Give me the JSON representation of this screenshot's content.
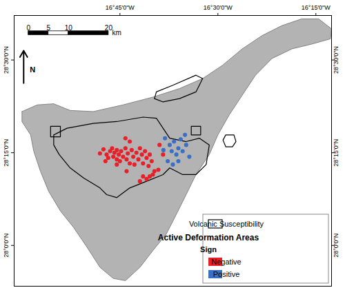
{
  "chart_data": {
    "type": "map",
    "xlim": [
      -17.02,
      -16.21
    ],
    "ylim": [
      27.89,
      28.62
    ],
    "xticks": [
      {
        "value": -16.75,
        "label": "16°45'0\"W"
      },
      {
        "value": -16.5,
        "label": "16°30'0\"W"
      },
      {
        "value": -16.25,
        "label": "16°15'0\"W"
      }
    ],
    "yticks": [
      {
        "value": 28.0,
        "label": "28°0'0\"N"
      },
      {
        "value": 28.25,
        "label": "28°15'0\"N"
      },
      {
        "value": 28.5,
        "label": "28°30'0\"N"
      }
    ],
    "scale_bar": {
      "ticks": [
        0,
        5,
        10,
        20
      ],
      "unit": "km"
    },
    "north": "N",
    "legend": "bottom-right",
    "island": [
      [
        -17.0,
        28.361
      ],
      [
        -16.961,
        28.379
      ],
      [
        -16.919,
        28.382
      ],
      [
        -16.877,
        28.364
      ],
      [
        -16.818,
        28.361
      ],
      [
        -16.742,
        28.379
      ],
      [
        -16.666,
        28.4
      ],
      [
        -16.598,
        28.423
      ],
      [
        -16.539,
        28.45
      ],
      [
        -16.488,
        28.486
      ],
      [
        -16.438,
        28.53
      ],
      [
        -16.387,
        28.566
      ],
      [
        -16.336,
        28.593
      ],
      [
        -16.286,
        28.611
      ],
      [
        -16.243,
        28.611
      ],
      [
        -16.21,
        28.584
      ],
      [
        -16.213,
        28.557
      ],
      [
        -16.26,
        28.543
      ],
      [
        -16.311,
        28.53
      ],
      [
        -16.362,
        28.504
      ],
      [
        -16.404,
        28.459
      ],
      [
        -16.438,
        28.405
      ],
      [
        -16.471,
        28.352
      ],
      [
        -16.5,
        28.298
      ],
      [
        -16.522,
        28.245
      ],
      [
        -16.556,
        28.191
      ],
      [
        -16.581,
        28.137
      ],
      [
        -16.606,
        28.084
      ],
      [
        -16.632,
        28.03
      ],
      [
        -16.666,
        27.986
      ],
      [
        -16.699,
        27.941
      ],
      [
        -16.736,
        27.905
      ],
      [
        -16.767,
        27.911
      ],
      [
        -16.801,
        27.941
      ],
      [
        -16.834,
        27.995
      ],
      [
        -16.868,
        28.048
      ],
      [
        -16.902,
        28.093
      ],
      [
        -16.932,
        28.146
      ],
      [
        -16.953,
        28.2
      ],
      [
        -16.97,
        28.254
      ],
      [
        -16.978,
        28.298
      ],
      [
        -17.0,
        28.334
      ]
    ],
    "susceptibility": {
      "name": "Volcanic Susceptibility",
      "color": "#000000",
      "polygons": [
        [
          [
            -16.919,
            28.298
          ],
          [
            -16.885,
            28.316
          ],
          [
            -16.818,
            28.329
          ],
          [
            -16.758,
            28.334
          ],
          [
            -16.691,
            28.346
          ],
          [
            -16.657,
            28.343
          ],
          [
            -16.64,
            28.316
          ],
          [
            -16.623,
            28.289
          ],
          [
            -16.581,
            28.28
          ],
          [
            -16.547,
            28.289
          ],
          [
            -16.522,
            28.271
          ],
          [
            -16.53,
            28.218
          ],
          [
            -16.556,
            28.191
          ],
          [
            -16.59,
            28.191
          ],
          [
            -16.623,
            28.209
          ],
          [
            -16.64,
            28.191
          ],
          [
            -16.682,
            28.173
          ],
          [
            -16.725,
            28.155
          ],
          [
            -16.758,
            28.129
          ],
          [
            -16.784,
            28.137
          ],
          [
            -16.801,
            28.155
          ],
          [
            -16.843,
            28.182
          ],
          [
            -16.877,
            28.209
          ],
          [
            -16.905,
            28.245
          ],
          [
            -16.919,
            28.271
          ]
        ],
        [
          [
            -16.927,
            28.321
          ],
          [
            -16.902,
            28.321
          ],
          [
            -16.902,
            28.293
          ],
          [
            -16.927,
            28.293
          ]
        ],
        [
          [
            -16.657,
            28.414
          ],
          [
            -16.615,
            28.432
          ],
          [
            -16.556,
            28.459
          ],
          [
            -16.539,
            28.45
          ],
          [
            -16.556,
            28.414
          ],
          [
            -16.598,
            28.396
          ],
          [
            -16.64,
            28.387
          ],
          [
            -16.662,
            28.396
          ]
        ],
        [
          [
            -16.568,
            28.321
          ],
          [
            -16.544,
            28.321
          ],
          [
            -16.544,
            28.298
          ],
          [
            -16.568,
            28.298
          ]
        ],
        [
          [
            -16.48,
            28.298
          ],
          [
            -16.459,
            28.298
          ],
          [
            -16.454,
            28.28
          ],
          [
            -16.463,
            28.266
          ],
          [
            -16.48,
            28.266
          ],
          [
            -16.487,
            28.284
          ]
        ]
      ]
    },
    "deformation": {
      "title": "Active Deformation Areas",
      "subtitle": "Sign",
      "series": [
        {
          "name": "Negative",
          "color": "#e8202a",
          "points": [
            [
              -16.801,
              28.248
            ],
            [
              -16.792,
              28.259
            ],
            [
              -16.784,
              28.245
            ],
            [
              -16.78,
              28.236
            ],
            [
              -16.775,
              28.254
            ],
            [
              -16.77,
              28.262
            ],
            [
              -16.767,
              28.239
            ],
            [
              -16.764,
              28.25
            ],
            [
              -16.758,
              28.232
            ],
            [
              -16.758,
              28.257
            ],
            [
              -16.753,
              28.245
            ],
            [
              -16.75,
              28.227
            ],
            [
              -16.747,
              28.254
            ],
            [
              -16.742,
              28.239
            ],
            [
              -16.736,
              28.262
            ],
            [
              -16.733,
              28.232
            ],
            [
              -16.73,
              28.248
            ],
            [
              -16.725,
              28.221
            ],
            [
              -16.72,
              28.257
            ],
            [
              -16.716,
              28.239
            ],
            [
              -16.713,
              28.218
            ],
            [
              -16.708,
              28.25
            ],
            [
              -16.703,
              28.232
            ],
            [
              -16.699,
              28.262
            ],
            [
              -16.694,
              28.245
            ],
            [
              -16.691,
              28.221
            ],
            [
              -16.686,
              28.254
            ],
            [
              -16.682,
              28.236
            ],
            [
              -16.677,
              28.214
            ],
            [
              -16.674,
              28.245
            ],
            [
              -16.669,
              28.227
            ],
            [
              -16.662,
              28.2
            ],
            [
              -16.674,
              28.186
            ],
            [
              -16.682,
              28.179
            ],
            [
              -16.691,
              28.186
            ],
            [
              -16.699,
              28.173
            ],
            [
              -16.666,
              28.191
            ],
            [
              -16.652,
              28.204
            ],
            [
              -16.725,
              28.28
            ],
            [
              -16.736,
              28.289
            ],
            [
              -16.649,
              28.271
            ],
            [
              -16.758,
              28.218
            ],
            [
              -16.787,
              28.227
            ],
            [
              -16.733,
              28.2
            ],
            [
              -16.64,
              28.245
            ]
          ]
        },
        {
          "name": "Positive",
          "color": "#3a6fc4",
          "points": [
            [
              -16.635,
              28.289
            ],
            [
              -16.623,
              28.271
            ],
            [
              -16.618,
              28.254
            ],
            [
              -16.612,
              28.28
            ],
            [
              -16.606,
              28.245
            ],
            [
              -16.601,
              28.262
            ],
            [
              -16.595,
              28.286
            ],
            [
              -16.59,
              28.254
            ],
            [
              -16.581,
              28.271
            ],
            [
              -16.573,
              28.239
            ],
            [
              -16.628,
              28.227
            ],
            [
              -16.615,
              28.218
            ],
            [
              -16.584,
              28.298
            ],
            [
              -16.601,
              28.227
            ],
            [
              -16.639,
              28.257
            ]
          ]
        }
      ]
    }
  }
}
